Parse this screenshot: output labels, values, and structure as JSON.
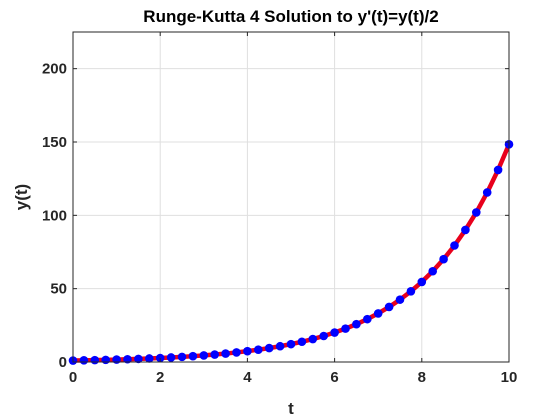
{
  "chart_data": {
    "type": "line",
    "title": "Runge-Kutta 4 Solution to y'(t)=y(t)/2",
    "xlabel": "t",
    "ylabel": "y(t)",
    "xlim": [
      0,
      10
    ],
    "ylim": [
      0,
      225
    ],
    "xticks": [
      0,
      2,
      4,
      6,
      8,
      10
    ],
    "yticks": [
      0,
      50,
      100,
      150,
      200
    ],
    "grid": true,
    "legend": "none",
    "series": [
      {
        "style": "line",
        "color": "#e8001c",
        "x": [
          0,
          0.25,
          0.5,
          0.75,
          1,
          1.25,
          1.5,
          1.75,
          2,
          2.25,
          2.5,
          2.75,
          3,
          3.25,
          3.5,
          3.75,
          4,
          4.25,
          4.5,
          4.75,
          5,
          5.25,
          5.5,
          5.75,
          6,
          6.25,
          6.5,
          6.75,
          7,
          7.25,
          7.5,
          7.75,
          8,
          8.25,
          8.5,
          8.75,
          9,
          9.25,
          9.5,
          9.75,
          10
        ],
        "y": [
          1.0,
          1.13,
          1.28,
          1.45,
          1.65,
          1.87,
          2.12,
          2.4,
          2.72,
          3.08,
          3.49,
          3.96,
          4.48,
          5.08,
          5.75,
          6.52,
          7.39,
          8.37,
          9.49,
          10.75,
          12.18,
          13.8,
          15.64,
          17.73,
          20.09,
          22.76,
          25.79,
          29.22,
          33.12,
          37.52,
          42.52,
          48.18,
          54.6,
          61.87,
          70.11,
          79.44,
          90.02,
          102.0,
          115.58,
          130.97,
          148.41
        ]
      },
      {
        "style": "markers",
        "color": "#0000ff",
        "x": [
          0,
          0.25,
          0.5,
          0.75,
          1,
          1.25,
          1.5,
          1.75,
          2,
          2.25,
          2.5,
          2.75,
          3,
          3.25,
          3.5,
          3.75,
          4,
          4.25,
          4.5,
          4.75,
          5,
          5.25,
          5.5,
          5.75,
          6,
          6.25,
          6.5,
          6.75,
          7,
          7.25,
          7.5,
          7.75,
          8,
          8.25,
          8.5,
          8.75,
          9,
          9.25,
          9.5,
          9.75,
          10
        ],
        "y": [
          1.0,
          1.13,
          1.28,
          1.45,
          1.65,
          1.87,
          2.12,
          2.4,
          2.72,
          3.08,
          3.49,
          3.96,
          4.48,
          5.08,
          5.75,
          6.52,
          7.39,
          8.37,
          9.49,
          10.75,
          12.18,
          13.8,
          15.64,
          17.73,
          20.09,
          22.76,
          25.79,
          29.22,
          33.12,
          37.52,
          42.52,
          48.18,
          54.6,
          61.87,
          70.11,
          79.44,
          90.02,
          102.0,
          115.58,
          130.97,
          148.41
        ]
      }
    ]
  }
}
